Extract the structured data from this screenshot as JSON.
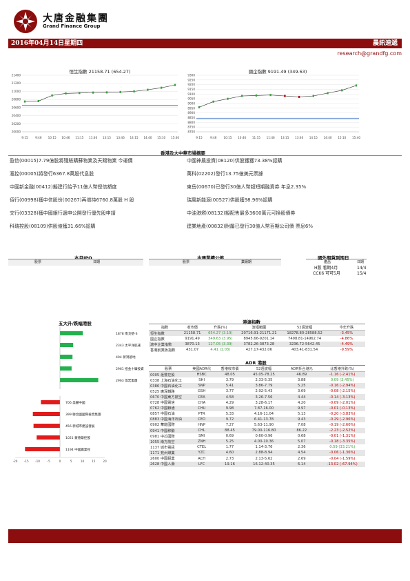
{
  "header": {
    "company_cn": "大唐金融集團",
    "company_en": "Grand Finance Group",
    "date": "2016年04月14日星期四",
    "report_title": "晨訊速遞",
    "email": "research@grandfg.com"
  },
  "colors": {
    "brand_red": "#8b0d0d",
    "up": "#3aa03a",
    "down": "#c00000"
  },
  "chart_data": [
    {
      "type": "line",
      "title": "恒生指數 21158.71 (654.27)",
      "x": [
        "9:15",
        "9:46",
        "10:15",
        "10:46",
        "11:15",
        "11:46",
        "13:15",
        "13:46",
        "14:15",
        "14:40",
        "15:10",
        "15:40"
      ],
      "ylim": [
        20000,
        21400
      ],
      "yticks": [
        20000,
        20200,
        20400,
        20600,
        20800,
        21000,
        21200,
        21400
      ],
      "series": [
        {
          "values": [
            20750,
            20760,
            20900,
            20950,
            20960,
            20970,
            20975,
            20985,
            21000,
            21040,
            21090,
            21158
          ]
        }
      ],
      "reference_line": 20650
    },
    {
      "type": "line",
      "title": "國企指數 9191.49 (349.63)",
      "x": [
        "9:15",
        "9:46",
        "10:15",
        "10:46",
        "11:15",
        "11:46",
        "13:15",
        "13:46",
        "14:15",
        "14:40",
        "15:10",
        "15:40"
      ],
      "ylim": [
        8700,
        9300
      ],
      "yticks": [
        8700,
        8750,
        8800,
        8850,
        8900,
        8950,
        9000,
        9050,
        9100,
        9150,
        9200,
        9250,
        9300
      ],
      "series": [
        {
          "values": [
            8960,
            9020,
            9050,
            9080,
            9085,
            9090,
            9080,
            9070,
            9080,
            9110,
            9140,
            9191
          ]
        }
      ],
      "reference_line": 8840
    }
  ],
  "market_summary": {
    "title": "香港及大中華市場摘要",
    "left": [
      "盈信(00015)7.79億股將殘賬購蘇物業及天賜物業 今運價",
      "滙控(00005)將發行6367.8萬股代息股",
      "中國新金融(00412)擬建行給予11億人幣授信額度",
      "佰行(00998)獲中信股份(00267)再增持6760.8萬股 H 股",
      "交行(03328)獲中國銀行遞申公開發行優先股申請",
      "科瑞控股(08109)供股億獲31.66%認購"
    ],
    "right": [
      "中國神農投資(08120)供股獲獲73.38%認購",
      "萬科(02202)發行13.75億美元票據",
      "東岳(00670)已發行30億人幣超短期融資券 年息2.35%",
      "瑞風新能源(00527)供股獲98.96%認購",
      "中油港燃(08132)擬配售最多3600萬元可換股債券",
      "建業地產(00832)附屬已發行30億人幣百期公司債 票息6%"
    ]
  },
  "ipo": {
    "title": "本月IPO",
    "cols": [
      "股票",
      "日期"
    ]
  },
  "results": {
    "title": "本週業績公佈",
    "cols": [
      "股票",
      "業績期"
    ]
  },
  "dividends": {
    "title": "國外期貨到期日",
    "cols": [
      "產品",
      "日期"
    ],
    "rows": [
      [
        "H股 看期4月",
        "14/4"
      ],
      [
        "CCK6 可可5月",
        "15/4"
      ]
    ]
  },
  "movers": {
    "title": "五大升/跌幅港股",
    "gainers": [
      {
        "label": "1878 南戈壁-S",
        "value": 10.2
      },
      {
        "label": "2343 太平洋航運",
        "value": 5.9
      },
      {
        "label": "404 新鴻基地",
        "value": 5.6
      },
      {
        "label": "2961 招金十礦投資",
        "value": 5.2
      },
      {
        "label": "2963 偉宏集團",
        "value": 17.1
      }
    ],
    "losers": [
      {
        "label": "706 美麗中國",
        "value": -8.5
      },
      {
        "label": "399 聯合國國際投資集團",
        "value": -12.1
      },
      {
        "label": "456 新城市建設發展",
        "value": -11.8
      },
      {
        "label": "1021 蒙德斯控股",
        "value": -10.4
      },
      {
        "label": "1194 中國農業控",
        "value": -15.6
      }
    ],
    "axis": [
      "-20",
      "-15",
      "-10",
      "-5",
      "0",
      "5",
      "10",
      "15",
      "20"
    ]
  },
  "hk_index": {
    "title": "港滬指數",
    "cols": [
      "指數",
      "收市價",
      "升跌(%)",
      "波幅範圍",
      "52週波幅",
      "今年升跌"
    ],
    "rows": [
      [
        "恒生指數",
        "21158.71",
        "654.27 (3.19)",
        "20716.91-21171.21",
        "18278.80-28588.52",
        "-3.45%"
      ],
      [
        "國企指數",
        "9191.49",
        "349.63 (3.95)",
        "8945.66-9201.14",
        "7498.81-14962.74",
        "-4.86%"
      ],
      [
        "滬中企業指數",
        "3870.13",
        "127.05 (3.39)",
        "3782.26-3873.28",
        "3236.72-5642.45",
        "-4.49%"
      ],
      [
        "香港創業板指數",
        "431.07",
        "4.41 (1.03)",
        "427.17-432.06",
        "403.41-831.54",
        "-9.59%"
      ]
    ]
  },
  "adr": {
    "title": "ADR 港股",
    "cols": [
      "股票",
      "美國ADR代",
      "香港收市價",
      "52週波幅",
      "ADR折合港元",
      "比香港升跌(%)"
    ],
    "rows": [
      [
        "0005 滙豐控股",
        "HSBC",
        "48.05",
        "45.05-78.25",
        "46.89",
        "-1.16 (-2.41%)"
      ],
      [
        "0338 上海石油化工",
        "SHI",
        "3.79",
        "2.33-5.35",
        "3.88",
        "0.09 (2.45%)"
      ],
      [
        "0386 中國石油化工",
        "SNP",
        "5.41",
        "3.86-7.79",
        "5.25",
        "-0.16 (-2.94%)"
      ],
      [
        "0525 廣深鐵路",
        "GSH",
        "3.77",
        "2.92-5.43",
        "3.69",
        "-0.08 (-2.15%)"
      ],
      [
        "0670 中國東方航空",
        "CEA",
        "4.58",
        "3.26-7.56",
        "4.44",
        "-0.14 (-3.13%)"
      ],
      [
        "0728 中國電信",
        "CHA",
        "4.29",
        "3.28-6.17",
        "4.20",
        "-0.09 (-2.01%)"
      ],
      [
        "0762 中國聯通",
        "CHU",
        "9.98",
        "7.87-16.00",
        "9.97",
        "-0.01 (-0.13%)"
      ],
      [
        "0857 中國石油",
        "PTR",
        "5.33",
        "4.16-11.04",
        "5.13",
        "-0.20 (-3.83%)"
      ],
      [
        "0883 中國海洋石油",
        "CEO",
        "9.72",
        "6.41-13.78",
        "9.43",
        "-0.29 (-2.96%)"
      ],
      [
        "0902 華能國際",
        "HNP",
        "7.27",
        "5.63-11.90",
        "7.08",
        "-0.19 (-2.60%)"
      ],
      [
        "0941 中國移動",
        "CHL",
        "88.45",
        "79.00-116.80",
        "86.22",
        "-2.23 (-2.52%)"
      ],
      [
        "0981 中芯國際",
        "SMI",
        "0.69",
        "0.60-0.96",
        "0.68",
        "-0.01 (-1.31%)"
      ],
      [
        "1055 南方航空",
        "ZNH",
        "5.25",
        "4.00-10.36",
        "5.07",
        "-0.18 (-3.35%)"
      ],
      [
        "1137 城市電訊",
        "CTEL",
        "1.77",
        "1.14-3.76",
        "2.36",
        "0.59 (33.21%)"
      ],
      [
        "1171 兗州煤業",
        "YZC",
        "4.60",
        "2.88-8.94",
        "4.54",
        "-0.06 (-1.36%)"
      ],
      [
        "2600 中國鋁業",
        "ACH",
        "2.73",
        "2.13-5.62",
        "2.69",
        "-0.04 (-1.59%)"
      ],
      [
        "2628 中國人壽",
        "LFC",
        "19.16",
        "16.12-40.35",
        "6.14",
        "-13.02 (-67.94%)"
      ]
    ]
  }
}
